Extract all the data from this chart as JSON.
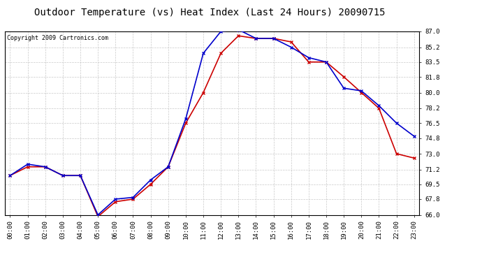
{
  "title": "Outdoor Temperature (vs) Heat Index (Last 24 Hours) 20090715",
  "copyright": "Copyright 2009 Cartronics.com",
  "hours": [
    0,
    1,
    2,
    3,
    4,
    5,
    6,
    7,
    8,
    9,
    10,
    11,
    12,
    13,
    14,
    15,
    16,
    17,
    18,
    19,
    20,
    21,
    22,
    23
  ],
  "x_labels": [
    "00:00",
    "01:00",
    "02:00",
    "03:00",
    "04:00",
    "05:00",
    "06:00",
    "07:00",
    "08:00",
    "09:00",
    "10:00",
    "11:00",
    "12:00",
    "13:00",
    "14:00",
    "15:00",
    "16:00",
    "17:00",
    "18:00",
    "19:00",
    "20:00",
    "21:00",
    "22:00",
    "23:00"
  ],
  "temp": [
    70.5,
    71.5,
    71.5,
    70.5,
    70.5,
    65.8,
    67.5,
    67.8,
    69.5,
    71.5,
    76.5,
    80.0,
    84.5,
    86.5,
    86.2,
    86.2,
    85.8,
    83.5,
    83.5,
    81.8,
    80.0,
    78.2,
    73.0,
    72.5
  ],
  "heat_index": [
    70.5,
    71.8,
    71.5,
    70.5,
    70.5,
    66.0,
    67.8,
    68.0,
    70.0,
    71.5,
    77.0,
    84.5,
    87.0,
    87.2,
    86.2,
    86.2,
    85.2,
    84.0,
    83.5,
    80.5,
    80.2,
    78.5,
    76.5,
    75.0
  ],
  "temp_color": "#cc0000",
  "heat_index_color": "#0000cc",
  "ylim": [
    66.0,
    87.0
  ],
  "yticks": [
    66.0,
    67.8,
    69.5,
    71.2,
    73.0,
    74.8,
    76.5,
    78.2,
    80.0,
    81.8,
    83.5,
    85.2,
    87.0
  ],
  "bg_color": "#ffffff",
  "grid_color": "#bbbbbb",
  "title_fontsize": 10,
  "copyright_fontsize": 6,
  "marker_size": 3,
  "linewidth": 1.2
}
